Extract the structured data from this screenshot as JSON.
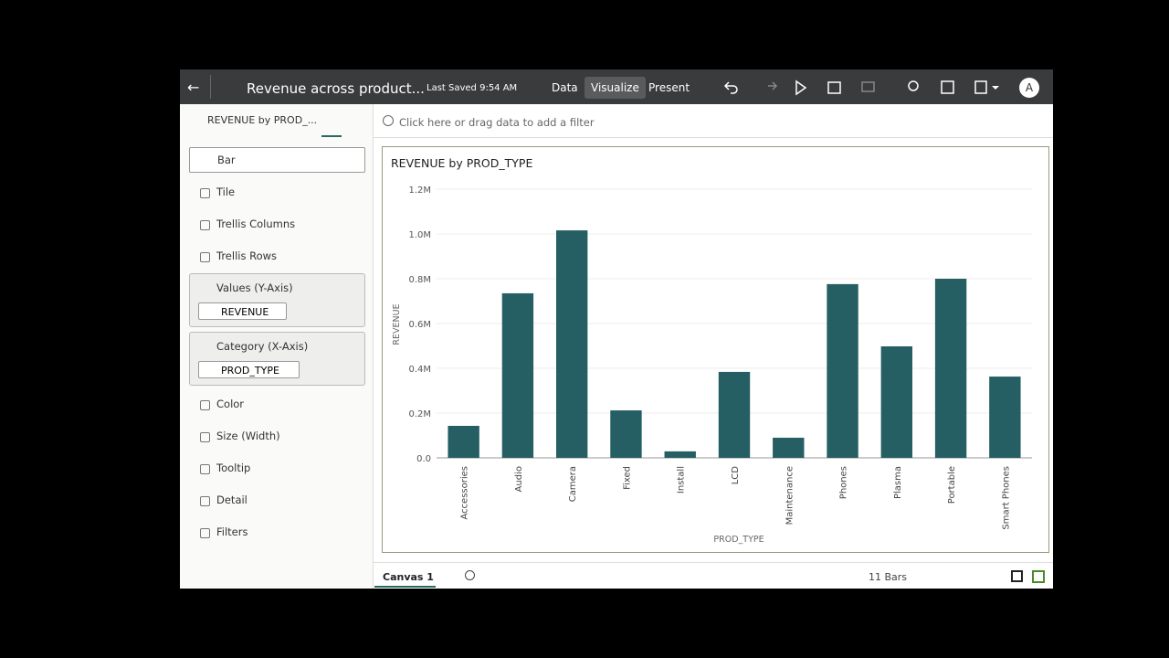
{
  "header": {
    "title": "Revenue across product...",
    "last_saved": "Last Saved 9:54 AM",
    "tabs": [
      "Data",
      "Visualize",
      "Present"
    ],
    "avatar": "A"
  },
  "left_panel": {
    "tab_title": "REVENUE by PROD_...",
    "viz_type": "Bar",
    "items_top": [
      "Tile",
      "Trellis Columns",
      "Trellis Rows"
    ],
    "values_section": {
      "label": "Values (Y-Axis)",
      "pill": "REVENUE"
    },
    "category_section": {
      "label": "Category (X-Axis)",
      "pill": "PROD_TYPE"
    },
    "items_bottom": [
      "Color",
      "Size (Width)",
      "Tooltip",
      "Detail",
      "Filters"
    ]
  },
  "filter_bar": {
    "placeholder": "Click here or drag data to add a filter"
  },
  "footer": {
    "canvas": "Canvas 1",
    "status": "11 Bars"
  },
  "chart_data": {
    "type": "bar",
    "title": "REVENUE by PROD_TYPE",
    "x_label": "PROD_TYPE",
    "y_label": "REVENUE",
    "categories": [
      "Accessories",
      "Audio",
      "Camera",
      "Fixed",
      "Install",
      "LCD",
      "Maintenance",
      "Phones",
      "Plasma",
      "Portable",
      "Smart Phones"
    ],
    "values": [
      143000,
      735000,
      1016000,
      212000,
      29000,
      384000,
      90000,
      776000,
      498000,
      800000,
      363000
    ],
    "color": "#255f63",
    "ylim": [
      0,
      1200000
    ],
    "yticks": [
      {
        "value": 0,
        "label": "0.0"
      },
      {
        "value": 200000,
        "label": "0.2M"
      },
      {
        "value": 400000,
        "label": "0.4M"
      },
      {
        "value": 600000,
        "label": "0.6M"
      },
      {
        "value": 800000,
        "label": "0.8M"
      },
      {
        "value": 1000000,
        "label": "1.0M"
      },
      {
        "value": 1200000,
        "label": "1.2M"
      }
    ],
    "grid": true
  }
}
